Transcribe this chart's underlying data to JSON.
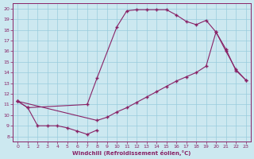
{
  "xlabel": "Windchill (Refroidissement éolien,°C)",
  "bg_color": "#cce8f0",
  "line_color": "#882266",
  "grid_color": "#99ccdd",
  "xlim": [
    -0.5,
    23.5
  ],
  "ylim": [
    7.5,
    20.5
  ],
  "xticks": [
    0,
    1,
    2,
    3,
    4,
    5,
    6,
    7,
    8,
    9,
    10,
    11,
    12,
    13,
    14,
    15,
    16,
    17,
    18,
    19,
    20,
    21,
    22,
    23
  ],
  "yticks": [
    8,
    9,
    10,
    11,
    12,
    13,
    14,
    15,
    16,
    17,
    18,
    19,
    20
  ],
  "line1_x": [
    0,
    1,
    2,
    3,
    4,
    5,
    6,
    7,
    8
  ],
  "line1_y": [
    11.3,
    10.7,
    9.0,
    9.0,
    9.0,
    8.8,
    8.5,
    8.2,
    8.6
  ],
  "line2_x": [
    0,
    1,
    7,
    8,
    10,
    11,
    12,
    13,
    14,
    15,
    16,
    17,
    18,
    19,
    20,
    21,
    22,
    23
  ],
  "line2_y": [
    11.3,
    10.7,
    11.0,
    13.5,
    18.3,
    19.8,
    19.9,
    19.9,
    19.9,
    19.9,
    19.4,
    18.8,
    18.5,
    18.9,
    17.8,
    16.2,
    14.2,
    13.3
  ],
  "line3_x": [
    0,
    8,
    9,
    10,
    11,
    12,
    13,
    14,
    15,
    16,
    17,
    18,
    19,
    20,
    21,
    22,
    23
  ],
  "line3_y": [
    11.3,
    9.5,
    9.8,
    10.3,
    10.7,
    11.2,
    11.7,
    12.2,
    12.7,
    13.2,
    13.6,
    14.0,
    14.6,
    17.8,
    16.0,
    14.3,
    13.3
  ]
}
